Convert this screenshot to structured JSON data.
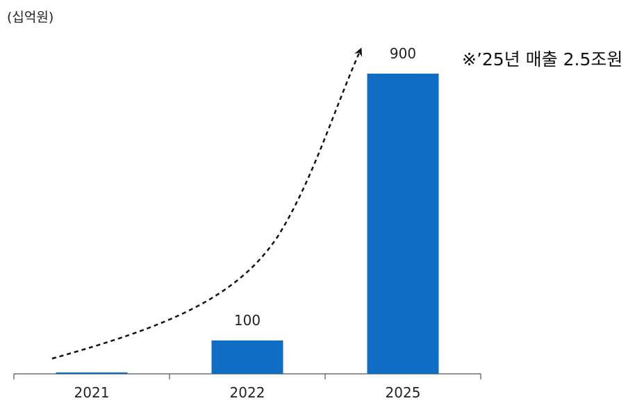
{
  "unit_label": "(십억원)",
  "annotation": "※’25년 매출 2.5조원",
  "colors": {
    "bar": "#0F6EC4",
    "axis": "#555555",
    "arrow": "#111111"
  },
  "chart_data": {
    "type": "bar",
    "title": "",
    "xlabel": "",
    "ylabel": "(십억원)",
    "categories": [
      "2021",
      "2022",
      "2025"
    ],
    "values": [
      2,
      100,
      900
    ],
    "data_labels": [
      "",
      "100",
      "900"
    ],
    "ylim": [
      0,
      900
    ],
    "grid": false,
    "trend_arrow": "dashed curved arrow rising from 2021 to 2025"
  }
}
